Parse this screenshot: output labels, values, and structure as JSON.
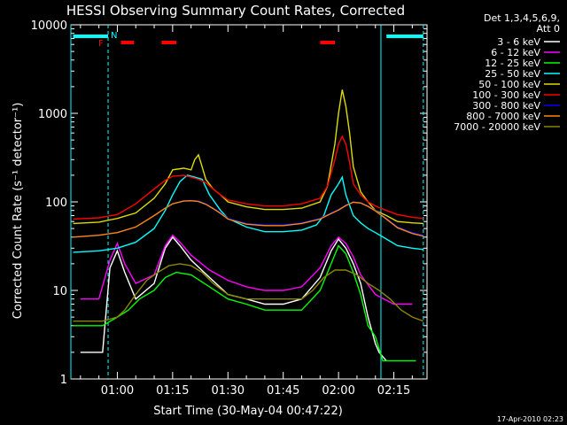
{
  "chart_data": {
    "type": "line",
    "title": "HESSI Observing Summary Count Rates, Corrected",
    "xlabel": "Start Time (30-May-04 00:47:22)",
    "ylabel": "Corrected Count Rate (s⁻¹ detector⁻¹)",
    "yscale": "log",
    "ylim": [
      1,
      10000
    ],
    "xlim_minutes": [
      47.4,
      144
    ],
    "x_ticks": [
      {
        "m": 60,
        "label": "01:00"
      },
      {
        "m": 75,
        "label": "01:15"
      },
      {
        "m": 90,
        "label": "01:30"
      },
      {
        "m": 105,
        "label": "01:45"
      },
      {
        "m": 120,
        "label": "02:00"
      },
      {
        "m": 135,
        "label": "02:15"
      }
    ],
    "y_ticks": [
      {
        "v": 1,
        "label": "1"
      },
      {
        "v": 10,
        "label": "10"
      },
      {
        "v": 100,
        "label": "100"
      },
      {
        "v": 1000,
        "label": "1000"
      },
      {
        "v": 10000,
        "label": "10000"
      }
    ],
    "grid": false,
    "legend_position": "top-right",
    "legend_header": [
      "Det 1,3,4,5,6,9,",
      "Att 0"
    ],
    "series": [
      {
        "name": "3 - 6 keV",
        "color": "#ffffff",
        "points": [
          [
            50,
            2
          ],
          [
            56,
            2
          ],
          [
            58,
            18
          ],
          [
            60,
            28
          ],
          [
            62,
            16
          ],
          [
            65,
            8
          ],
          [
            70,
            12
          ],
          [
            73,
            30
          ],
          [
            75,
            40
          ],
          [
            77,
            32
          ],
          [
            80,
            22
          ],
          [
            85,
            14
          ],
          [
            90,
            9
          ],
          [
            95,
            8
          ],
          [
            100,
            7
          ],
          [
            105,
            7
          ],
          [
            110,
            8
          ],
          [
            115,
            14
          ],
          [
            118,
            28
          ],
          [
            120,
            38
          ],
          [
            122,
            30
          ],
          [
            124,
            20
          ],
          [
            126,
            12
          ],
          [
            128,
            5
          ],
          [
            130,
            2.5
          ],
          [
            131,
            2
          ],
          [
            133,
            1.6
          ]
        ]
      },
      {
        "name": "6 - 12 keV",
        "color": "#ff00ff",
        "points": [
          [
            50,
            8
          ],
          [
            55,
            8
          ],
          [
            58,
            22
          ],
          [
            60,
            34
          ],
          [
            62,
            20
          ],
          [
            65,
            12
          ],
          [
            70,
            15
          ],
          [
            73,
            32
          ],
          [
            75,
            42
          ],
          [
            77,
            35
          ],
          [
            80,
            25
          ],
          [
            85,
            17
          ],
          [
            90,
            13
          ],
          [
            95,
            11
          ],
          [
            100,
            10
          ],
          [
            105,
            10
          ],
          [
            110,
            11
          ],
          [
            115,
            18
          ],
          [
            118,
            32
          ],
          [
            120,
            40
          ],
          [
            122,
            34
          ],
          [
            124,
            24
          ],
          [
            126,
            15
          ],
          [
            130,
            9
          ],
          [
            135,
            7
          ],
          [
            140,
            7
          ]
        ]
      },
      {
        "name": "12 - 25 keV",
        "color": "#00ff00",
        "points": [
          [
            48,
            4
          ],
          [
            52,
            4
          ],
          [
            56,
            4
          ],
          [
            60,
            5
          ],
          [
            63,
            6
          ],
          [
            66,
            8
          ],
          [
            70,
            10
          ],
          [
            73,
            14
          ],
          [
            76,
            16
          ],
          [
            80,
            15
          ],
          [
            85,
            11
          ],
          [
            90,
            8
          ],
          [
            95,
            7
          ],
          [
            100,
            6
          ],
          [
            105,
            6
          ],
          [
            110,
            6
          ],
          [
            115,
            10
          ],
          [
            118,
            20
          ],
          [
            120,
            32
          ],
          [
            122,
            26
          ],
          [
            124,
            16
          ],
          [
            126,
            9
          ],
          [
            128,
            4
          ],
          [
            130,
            3
          ],
          [
            132,
            1.6
          ],
          [
            134,
            1.6
          ],
          [
            138,
            1.6
          ],
          [
            141,
            1.6
          ]
        ]
      },
      {
        "name": "25 - 50 keV",
        "color": "#00ffff",
        "points": [
          [
            48,
            27
          ],
          [
            55,
            28
          ],
          [
            60,
            30
          ],
          [
            65,
            35
          ],
          [
            70,
            50
          ],
          [
            73,
            80
          ],
          [
            75,
            120
          ],
          [
            77,
            170
          ],
          [
            79,
            200
          ],
          [
            81,
            190
          ],
          [
            83,
            180
          ],
          [
            85,
            120
          ],
          [
            88,
            80
          ],
          [
            90,
            65
          ],
          [
            95,
            52
          ],
          [
            100,
            46
          ],
          [
            105,
            46
          ],
          [
            110,
            48
          ],
          [
            114,
            55
          ],
          [
            116,
            70
          ],
          [
            118,
            120
          ],
          [
            120,
            160
          ],
          [
            121,
            190
          ],
          [
            122,
            120
          ],
          [
            124,
            70
          ],
          [
            126,
            58
          ],
          [
            128,
            50
          ],
          [
            130,
            45
          ],
          [
            133,
            38
          ],
          [
            136,
            32
          ],
          [
            140,
            30
          ],
          [
            143,
            29
          ]
        ]
      },
      {
        "name": "50 - 100 keV",
        "color": "#dddd00",
        "points": [
          [
            48,
            57
          ],
          [
            55,
            59
          ],
          [
            60,
            65
          ],
          [
            65,
            75
          ],
          [
            70,
            110
          ],
          [
            73,
            160
          ],
          [
            75,
            230
          ],
          [
            78,
            240
          ],
          [
            80,
            230
          ],
          [
            81,
            300
          ],
          [
            82,
            340
          ],
          [
            83,
            250
          ],
          [
            84,
            180
          ],
          [
            86,
            140
          ],
          [
            88,
            120
          ],
          [
            90,
            100
          ],
          [
            95,
            88
          ],
          [
            100,
            82
          ],
          [
            105,
            82
          ],
          [
            110,
            85
          ],
          [
            115,
            100
          ],
          [
            117,
            150
          ],
          [
            119,
            450
          ],
          [
            120,
            1000
          ],
          [
            121,
            1850
          ],
          [
            122,
            1200
          ],
          [
            123,
            600
          ],
          [
            124,
            250
          ],
          [
            126,
            130
          ],
          [
            128,
            100
          ],
          [
            130,
            80
          ],
          [
            133,
            70
          ],
          [
            136,
            60
          ],
          [
            140,
            58
          ],
          [
            143,
            57
          ]
        ]
      },
      {
        "name": "100 - 300 keV",
        "color": "#ff0000",
        "points": [
          [
            48,
            64
          ],
          [
            55,
            66
          ],
          [
            60,
            72
          ],
          [
            65,
            95
          ],
          [
            70,
            140
          ],
          [
            73,
            175
          ],
          [
            75,
            195
          ],
          [
            78,
            200
          ],
          [
            80,
            190
          ],
          [
            82,
            180
          ],
          [
            84,
            165
          ],
          [
            86,
            140
          ],
          [
            88,
            120
          ],
          [
            90,
            105
          ],
          [
            95,
            95
          ],
          [
            100,
            90
          ],
          [
            105,
            90
          ],
          [
            110,
            95
          ],
          [
            115,
            110
          ],
          [
            117,
            150
          ],
          [
            119,
            300
          ],
          [
            120,
            450
          ],
          [
            121,
            550
          ],
          [
            122,
            450
          ],
          [
            123,
            280
          ],
          [
            124,
            160
          ],
          [
            126,
            120
          ],
          [
            128,
            100
          ],
          [
            130,
            90
          ],
          [
            133,
            80
          ],
          [
            136,
            72
          ],
          [
            140,
            67
          ],
          [
            143,
            65
          ]
        ]
      },
      {
        "name": "300 - 800 keV",
        "color": "#0000ff",
        "points": [
          [
            48,
            40
          ],
          [
            55,
            42
          ],
          [
            60,
            45
          ],
          [
            65,
            52
          ],
          [
            70,
            70
          ],
          [
            73,
            85
          ],
          [
            75,
            95
          ],
          [
            78,
            103
          ],
          [
            80,
            104
          ],
          [
            82,
            102
          ],
          [
            84,
            95
          ],
          [
            86,
            85
          ],
          [
            88,
            75
          ],
          [
            90,
            65
          ],
          [
            95,
            57
          ],
          [
            100,
            55
          ],
          [
            105,
            55
          ],
          [
            110,
            58
          ],
          [
            115,
            65
          ],
          [
            118,
            75
          ],
          [
            120,
            82
          ],
          [
            122,
            92
          ],
          [
            124,
            100
          ],
          [
            126,
            98
          ],
          [
            128,
            90
          ],
          [
            130,
            80
          ],
          [
            133,
            65
          ],
          [
            136,
            52
          ],
          [
            140,
            45
          ],
          [
            143,
            42
          ]
        ]
      },
      {
        "name": "800 - 7000 keV",
        "color": "#ff8800",
        "points": [
          [
            48,
            40
          ],
          [
            55,
            42
          ],
          [
            60,
            45
          ],
          [
            65,
            52
          ],
          [
            70,
            70
          ],
          [
            73,
            85
          ],
          [
            75,
            95
          ],
          [
            78,
            102
          ],
          [
            80,
            103
          ],
          [
            82,
            101
          ],
          [
            84,
            94
          ],
          [
            86,
            84
          ],
          [
            88,
            74
          ],
          [
            90,
            64
          ],
          [
            95,
            56
          ],
          [
            100,
            54
          ],
          [
            105,
            54
          ],
          [
            110,
            57
          ],
          [
            115,
            64
          ],
          [
            118,
            74
          ],
          [
            120,
            81
          ],
          [
            122,
            91
          ],
          [
            124,
            99
          ],
          [
            126,
            97
          ],
          [
            128,
            89
          ],
          [
            130,
            79
          ],
          [
            133,
            64
          ],
          [
            136,
            51
          ],
          [
            140,
            44
          ],
          [
            143,
            41
          ]
        ]
      },
      {
        "name": "7000 - 20000 keV",
        "color": "#888800",
        "points": [
          [
            48,
            4.5
          ],
          [
            52,
            4.5
          ],
          [
            56,
            4.5
          ],
          [
            60,
            5
          ],
          [
            62,
            6
          ],
          [
            65,
            9
          ],
          [
            68,
            13
          ],
          [
            71,
            16
          ],
          [
            74,
            19
          ],
          [
            77,
            20
          ],
          [
            80,
            19
          ],
          [
            83,
            16
          ],
          [
            86,
            12
          ],
          [
            90,
            9
          ],
          [
            95,
            8
          ],
          [
            100,
            8
          ],
          [
            105,
            8
          ],
          [
            110,
            8
          ],
          [
            113,
            10
          ],
          [
            116,
            14
          ],
          [
            119,
            17
          ],
          [
            122,
            17
          ],
          [
            125,
            15
          ],
          [
            128,
            12
          ],
          [
            131,
            10
          ],
          [
            134,
            8
          ],
          [
            137,
            6
          ],
          [
            140,
            5
          ],
          [
            143,
            4.5
          ]
        ]
      }
    ],
    "annotations": {
      "saa_label": "N",
      "flare_label": "F",
      "saa_bars": [
        [
          48,
          57.5
        ],
        [
          133,
          143
        ]
      ],
      "flare_bars": [
        [
          61,
          64.5
        ],
        [
          72,
          76
        ],
        [
          115,
          119
        ]
      ],
      "night_lines_solid": [
        47.4,
        131.5
      ],
      "night_lines_dashed": [
        57.5,
        143
      ]
    },
    "footer_date": "17-Apr-2010 02:23"
  }
}
